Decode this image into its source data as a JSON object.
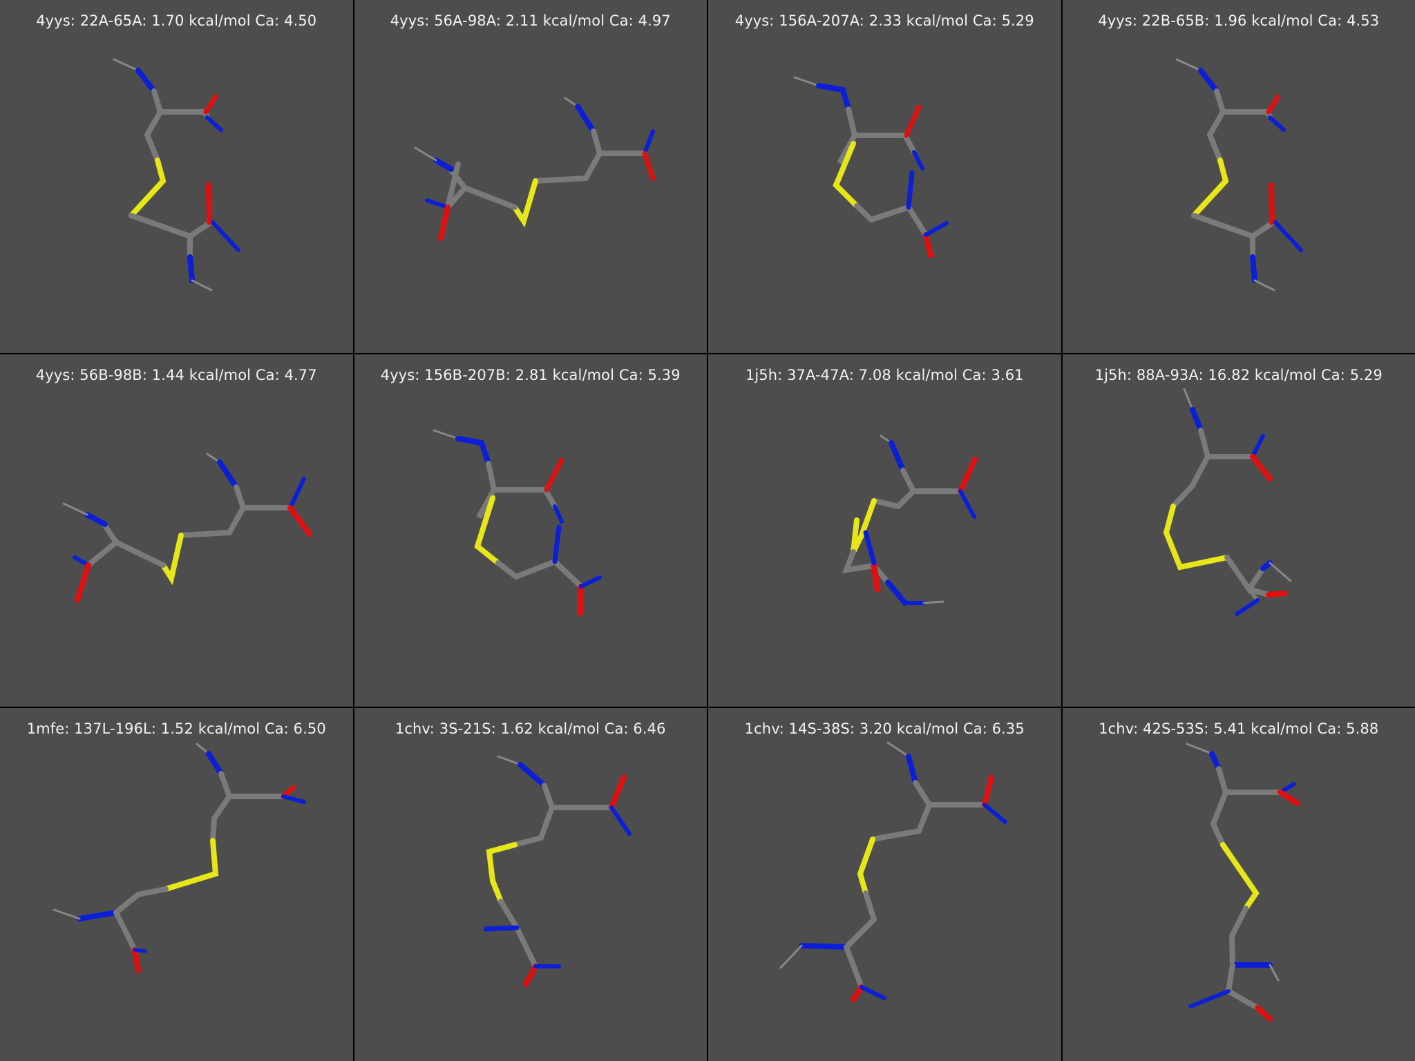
{
  "colors": {
    "background": "#4d4d4d",
    "divider": "#000000",
    "label": "#f2f2f2",
    "carbon": "#7a7a7a",
    "nitrogen": "#0b1fd6",
    "oxygen": "#e01010",
    "sulfur": "#e6e619"
  },
  "panels": [
    {
      "label": "4yys: 22A-65A: 1.70 kcal/mol Ca: 4.50"
    },
    {
      "label": "4yys: 56A-98A: 2.11 kcal/mol Ca: 4.97"
    },
    {
      "label": "4yys: 156A-207A: 2.33 kcal/mol Ca: 5.29"
    },
    {
      "label": "4yys: 22B-65B: 1.96 kcal/mol Ca: 4.53"
    },
    {
      "label": "4yys: 56B-98B: 1.44 kcal/mol Ca: 4.77"
    },
    {
      "label": "4yys: 156B-207B: 2.81 kcal/mol Ca: 5.39"
    },
    {
      "label": "1j5h: 37A-47A: 7.08 kcal/mol Ca: 3.61"
    },
    {
      "label": "1j5h: 88A-93A: 16.82 kcal/mol Ca: 5.29"
    },
    {
      "label": "1mfe: 137L-196L: 1.52 kcal/mol Ca: 6.50"
    },
    {
      "label": "1chv: 3S-21S: 1.62 kcal/mol Ca: 6.46"
    },
    {
      "label": "1chv: 14S-38S: 3.20 kcal/mol Ca: 6.35"
    },
    {
      "label": "1chv: 42S-53S: 5.41 kcal/mol Ca: 5.88"
    }
  ]
}
